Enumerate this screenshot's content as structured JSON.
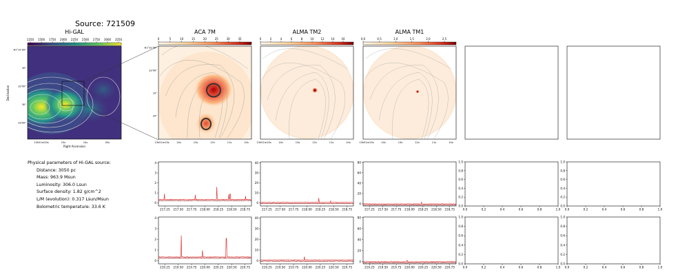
{
  "page": {
    "title": "Source: 721509",
    "panel_titles": [
      "Hi-GAL",
      "ACA 7M",
      "ALMA TM2",
      "ALMA TM1"
    ]
  },
  "colorbars": {
    "higal": {
      "ticks": [
        "1250",
        "1500",
        "1750",
        "2000",
        "2250",
        "2500",
        "2750",
        "3000",
        "3250"
      ],
      "colormap": "viridis"
    },
    "aca7m": {
      "ticks": [
        "0",
        "5",
        "10",
        "15",
        "20",
        "25",
        "30",
        "35"
      ],
      "colormap": "OrRd"
    },
    "tm2": {
      "ticks": [
        "0",
        "2",
        "4",
        "6",
        "8",
        "10",
        "12",
        "14",
        "16"
      ],
      "colormap": "OrRd"
    },
    "tm1": {
      "ticks": [
        "0.0",
        "0.5",
        "1.0",
        "1.5",
        "2.0",
        "2.5"
      ],
      "colormap": "OrRd"
    }
  },
  "images": {
    "higal": {
      "yticks": [
        "-61°31'00\"",
        "30\"",
        "32'00\"",
        "30\"",
        "33'00\""
      ],
      "xticks": [
        "13h51m20s",
        "15s",
        "10s",
        "05s"
      ],
      "xlabel": "Right Ascension",
      "ylabel": "Declination"
    },
    "zoom_yticks": [
      "-61°31'50\"",
      "32'00\"",
      "10\"",
      "20\""
    ],
    "zoom_xticks": [
      "13h51m15s",
      "14s",
      "13s",
      "12s",
      "11s",
      "10s"
    ]
  },
  "params": {
    "heading": "Physical parameters of Hi-GAL source:",
    "lines": [
      "Distance: 3050 pc",
      "Mass: 963.9 Msun",
      "Luminosity: 306.0 Lsun",
      "Surface density: 1.82 g/cm^2",
      "L/M (evolution): 0.317 Lsun/Msun",
      "Bolometric temperature: 33.6 K"
    ]
  },
  "chart_data": [
    {
      "type": "line",
      "panel": "spectrum-aca7m-row1",
      "x_range": [
        217.13,
        218.87
      ],
      "xticks": [
        217.25,
        217.5,
        217.75,
        218.0,
        218.25,
        218.5,
        218.75
      ],
      "ylim": [
        -0.3,
        4.1
      ],
      "yticks": [
        0,
        1,
        2,
        3,
        4
      ],
      "baseline": 0.35,
      "peaks": [
        {
          "x": 217.24,
          "y": 0.9
        },
        {
          "x": 217.82,
          "y": 0.8
        },
        {
          "x": 218.22,
          "y": 1.6
        },
        {
          "x": 218.44,
          "y": 0.85
        },
        {
          "x": 218.47,
          "y": 0.9
        },
        {
          "x": 218.76,
          "y": 0.7
        }
      ],
      "series_colors": [
        "#8b0000",
        "#ff3030"
      ]
    },
    {
      "type": "line",
      "panel": "spectrum-tm2-row1",
      "x_range": [
        217.13,
        218.87
      ],
      "xticks": [
        217.25,
        217.5,
        217.75,
        218.0,
        218.25,
        218.5,
        218.75
      ],
      "ylim": [
        -3,
        41
      ],
      "yticks": [
        0,
        10,
        20,
        30,
        40
      ],
      "baseline": 0.6,
      "peaks": [
        {
          "x": 218.22,
          "y": 5.0
        },
        {
          "x": 218.44,
          "y": 2.3
        }
      ],
      "series_colors": [
        "#8b0000",
        "#ff3030"
      ]
    },
    {
      "type": "line",
      "panel": "spectrum-tm1-row1",
      "x_range": [
        217.13,
        218.87
      ],
      "xticks": [
        217.25,
        217.5,
        217.75,
        218.0,
        218.25,
        218.5,
        218.75
      ],
      "ylim": [
        -4,
        81
      ],
      "yticks": [
        0,
        20,
        40,
        60,
        80
      ],
      "baseline": 0.0,
      "peaks": [
        {
          "x": 218.22,
          "y": 3.5
        }
      ],
      "series_colors": [
        "#8b0000",
        "#ff3030"
      ]
    },
    {
      "type": "line",
      "panel": "spectrum-aca7m-row2",
      "x_range": [
        219.13,
        220.87
      ],
      "xticks": [
        219.25,
        219.5,
        219.75,
        220.0,
        220.25,
        220.5,
        220.75
      ],
      "ylim": [
        -0.3,
        4.1
      ],
      "yticks": [
        0,
        1,
        2,
        3,
        4
      ],
      "baseline": 0.35,
      "peaks": [
        {
          "x": 219.56,
          "y": 2.35
        },
        {
          "x": 219.95,
          "y": 0.95
        },
        {
          "x": 220.4,
          "y": 2.1
        }
      ],
      "series_colors": [
        "#8b0000",
        "#ff3030"
      ]
    },
    {
      "type": "line",
      "panel": "spectrum-tm2-row2",
      "x_range": [
        219.13,
        220.87
      ],
      "xticks": [
        219.25,
        219.5,
        219.75,
        220.0,
        220.25,
        220.5,
        220.75
      ],
      "ylim": [
        -3,
        41
      ],
      "yticks": [
        0,
        10,
        20,
        30,
        40
      ],
      "baseline": 0.6,
      "peaks": [
        {
          "x": 219.95,
          "y": 3.8
        }
      ],
      "series_colors": [
        "#8b0000",
        "#ff3030"
      ]
    },
    {
      "type": "line",
      "panel": "spectrum-tm1-row2",
      "x_range": [
        219.13,
        220.87
      ],
      "xticks": [
        219.25,
        219.5,
        219.75,
        220.0,
        220.25,
        220.5,
        220.75
      ],
      "ylim": [
        -4,
        81
      ],
      "yticks": [
        0,
        20,
        40,
        60,
        80
      ],
      "baseline": 0.0,
      "peaks": [
        {
          "x": 219.95,
          "y": 3.0
        }
      ],
      "series_colors": [
        "#8b0000",
        "#ff3030"
      ]
    },
    {
      "type": "line",
      "panel": "empty-row1-a",
      "x_range": [
        0,
        1
      ],
      "xticks": [
        0.0,
        0.2,
        0.4,
        0.6,
        0.8,
        1.0
      ],
      "ylim": [
        0,
        1
      ],
      "yticks": [
        0.0,
        0.2,
        0.4,
        0.6,
        0.8,
        1.0
      ]
    },
    {
      "type": "line",
      "panel": "empty-row1-b",
      "x_range": [
        0,
        1
      ],
      "xticks": [
        0.0,
        0.2,
        0.4,
        0.6,
        0.8,
        1.0
      ],
      "ylim": [
        0,
        1
      ],
      "yticks": [
        0.0,
        0.2,
        0.4,
        0.6,
        0.8,
        1.0
      ]
    },
    {
      "type": "line",
      "panel": "empty-row2-a",
      "x_range": [
        0,
        1
      ],
      "xticks": [
        0.0,
        0.2,
        0.4,
        0.6,
        0.8,
        1.0
      ],
      "ylim": [
        0,
        1
      ],
      "yticks": [
        0.0,
        0.2,
        0.4,
        0.6,
        0.8,
        1.0
      ]
    },
    {
      "type": "line",
      "panel": "empty-row2-b",
      "x_range": [
        0,
        1
      ],
      "xticks": [
        0.0,
        0.2,
        0.4,
        0.6,
        0.8,
        1.0
      ],
      "ylim": [
        0,
        1
      ],
      "yticks": [
        0.0,
        0.2,
        0.4,
        0.6,
        0.8,
        1.0
      ]
    }
  ]
}
